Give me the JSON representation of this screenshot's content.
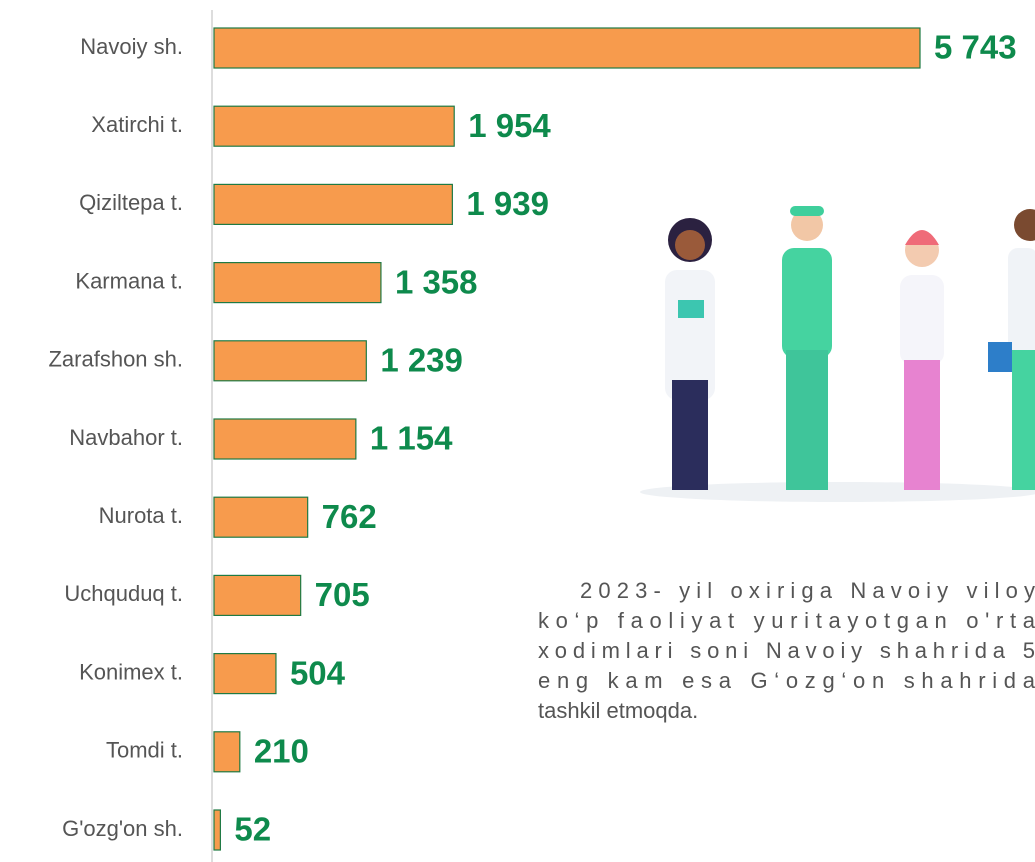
{
  "chart_data": {
    "type": "hbar",
    "categories": [
      "Navoiy sh.",
      "Xatirchi t.",
      "Qiziltepa t.",
      "Karmana t.",
      "Zarafshon sh.",
      "Navbahor t.",
      "Nurota t.",
      "Uchquduq t.",
      "Konimex t.",
      "Tomdi t.",
      "G'ozg'on sh."
    ],
    "values": [
      5743,
      1954,
      1939,
      1358,
      1239,
      1154,
      762,
      705,
      504,
      210,
      52
    ],
    "value_labels": [
      "5 743",
      "1 954",
      "1 939",
      "1 358",
      "1 239",
      "1 154",
      "762",
      "705",
      "504",
      "210",
      "52"
    ],
    "color": "#f79b4d",
    "label_color": "#0e8a4c",
    "annotation": [
      "2023- yil oxiriga Navoiy viloy",
      "ko‘p faoliyat yuritayotgan o'rta",
      "xodimlari soni Navoiy shahrida 5",
      "eng kam esa G‘ozg‘on shahrida",
      "tashkil etmoqda."
    ]
  }
}
